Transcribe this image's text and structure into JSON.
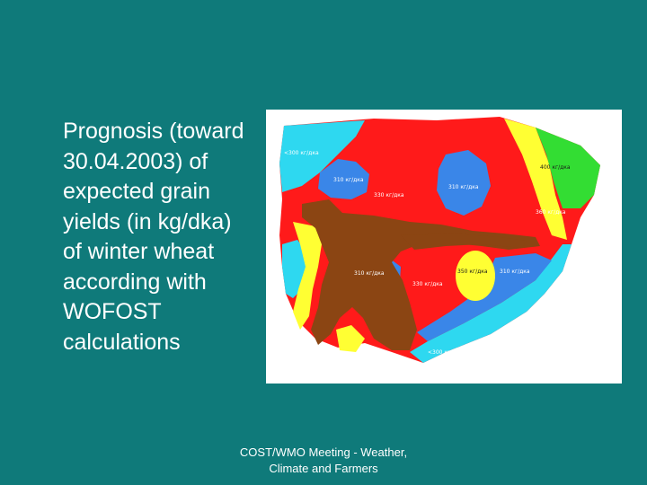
{
  "slide": {
    "body_text": "Prognosis (toward 30.04.2003) of expected grain yields (in kg/dka) of winter wheat according with WOFOST calculations",
    "footer_line1": "COST/WMO Meeting - Weather,",
    "footer_line2": "Climate and Farmers"
  },
  "map": {
    "zone_labels": [
      "<300 кг/дка",
      "310 кг/дка",
      "330 кг/дка",
      "310 кг/дка",
      "400 кг/дка",
      "360 кг/дка",
      "310 кг/дка",
      "330 кг/дка",
      "350 кг/дка",
      "310 кг/дка",
      "<300 кг/дка"
    ],
    "colors": {
      "red": "#ff1a1a",
      "blue": "#3a86e8",
      "cyan": "#2ed8f0",
      "yellow": "#ffff33",
      "green": "#33dd33",
      "brown": "#8b4513"
    }
  }
}
